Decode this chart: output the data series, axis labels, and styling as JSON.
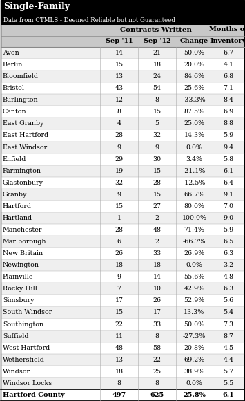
{
  "title1": "Single-Family",
  "title2": "Data from CTMLS - Deemed Reliable but not Guaranteed",
  "towns": [
    "Avon",
    "Berlin",
    "Bloomfield",
    "Bristol",
    "Burlington",
    "Canton",
    "East Granby",
    "East Hartford",
    "East Windsor",
    "Enfield",
    "Farmington",
    "Glastonbury",
    "Granby",
    "Hartford",
    "Hartland",
    "Manchester",
    "Marlborough",
    "New Britain",
    "Newington",
    "Plainville",
    "Rocky Hill",
    "Simsbury",
    "South Windsor",
    "Southington",
    "Suffield",
    "West Hartford",
    "Wethersfield",
    "Windsor",
    "Windsor Locks"
  ],
  "sep11": [
    14,
    15,
    13,
    43,
    12,
    8,
    4,
    28,
    9,
    29,
    19,
    32,
    9,
    15,
    1,
    28,
    6,
    26,
    18,
    9,
    7,
    17,
    15,
    22,
    11,
    48,
    13,
    18,
    8
  ],
  "sep12": [
    21,
    18,
    24,
    54,
    8,
    15,
    5,
    32,
    9,
    30,
    15,
    28,
    15,
    27,
    2,
    48,
    2,
    33,
    18,
    14,
    10,
    26,
    17,
    33,
    8,
    58,
    22,
    25,
    8
  ],
  "change": [
    "50.0%",
    "20.0%",
    "84.6%",
    "25.6%",
    "-33.3%",
    "87.5%",
    "25.0%",
    "14.3%",
    "0.0%",
    "3.4%",
    "-21.1%",
    "-12.5%",
    "66.7%",
    "80.0%",
    "100.0%",
    "71.4%",
    "-66.7%",
    "26.9%",
    "0.0%",
    "55.6%",
    "42.9%",
    "52.9%",
    "13.3%",
    "50.0%",
    "-27.3%",
    "20.8%",
    "69.2%",
    "38.9%",
    "0.0%"
  ],
  "inventory": [
    "6.7",
    "4.1",
    "6.8",
    "7.1",
    "8.4",
    "6.9",
    "8.8",
    "5.9",
    "9.4",
    "5.8",
    "6.1",
    "6.4",
    "9.1",
    "7.0",
    "9.0",
    "5.9",
    "6.5",
    "6.3",
    "3.2",
    "4.8",
    "6.3",
    "5.6",
    "5.4",
    "7.3",
    "8.7",
    "4.5",
    "4.4",
    "5.7",
    "5.5"
  ],
  "total_town": "Hartford County",
  "total_sep11": "497",
  "total_sep12": "625",
  "total_change": "25.8%",
  "total_inventory": "6.1",
  "header_bg": "#000000",
  "header_text": "#ffffff",
  "subheader_bg": "#c8c8c8",
  "odd_row_bg": "#efefef",
  "even_row_bg": "#ffffff",
  "border_color": "#aaaaaa",
  "figw": 3.55,
  "figh": 5.8,
  "dpi": 100
}
